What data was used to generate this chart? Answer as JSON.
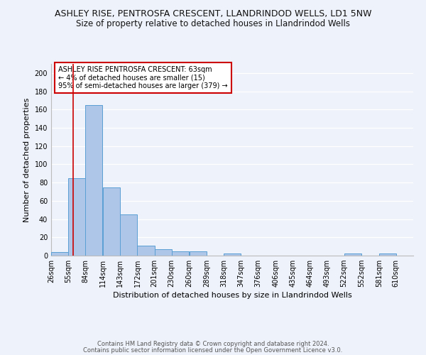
{
  "title": "ASHLEY RISE, PENTROSFA CRESCENT, LLANDRINDOD WELLS, LD1 5NW",
  "subtitle": "Size of property relative to detached houses in Llandrindod Wells",
  "xlabel": "Distribution of detached houses by size in Llandrindod Wells",
  "ylabel": "Number of detached properties",
  "footnote1": "Contains HM Land Registry data © Crown copyright and database right 2024.",
  "footnote2": "Contains public sector information licensed under the Open Government Licence v3.0.",
  "bins": [
    26,
    55,
    84,
    114,
    143,
    172,
    201,
    230,
    260,
    289,
    318,
    347,
    376,
    406,
    435,
    464,
    493,
    522,
    552,
    581,
    610
  ],
  "counts": [
    4,
    85,
    165,
    75,
    45,
    11,
    7,
    5,
    5,
    0,
    2,
    0,
    0,
    0,
    0,
    0,
    0,
    2,
    0,
    2,
    0
  ],
  "bar_color": "#aec6e8",
  "bar_edge_color": "#5a9fd4",
  "red_line_x": 63,
  "annotation_text": "ASHLEY RISE PENTROSFA CRESCENT: 63sqm\n← 4% of detached houses are smaller (15)\n95% of semi-detached houses are larger (379) →",
  "annotation_box_color": "#ffffff",
  "annotation_box_edge": "#cc0000",
  "ylim": [
    0,
    210
  ],
  "yticks": [
    0,
    20,
    40,
    60,
    80,
    100,
    120,
    140,
    160,
    180,
    200
  ],
  "bg_color": "#eef2fa",
  "grid_color": "#ffffff",
  "title_fontsize": 9,
  "subtitle_fontsize": 8.5,
  "axis_label_fontsize": 8,
  "tick_fontsize": 7,
  "annotation_fontsize": 7,
  "footnote_fontsize": 6
}
